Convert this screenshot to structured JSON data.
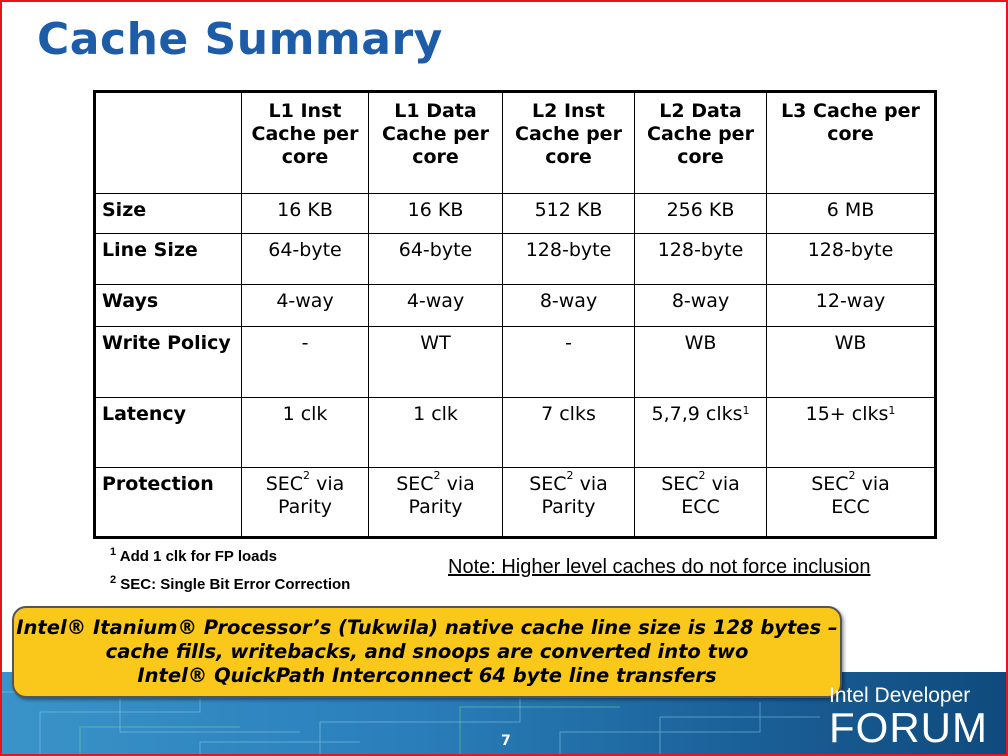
{
  "title": "Cache Summary",
  "table": {
    "headers": [
      "",
      "L1 Inst Cache per core",
      "L1 Data Cache per core",
      "L2 Inst Cache per core",
      "L2 Data Cache per core",
      "L3 Cache per core"
    ],
    "rows": [
      {
        "label": "Size",
        "cells": [
          "16 KB",
          "16 KB",
          "512 KB",
          "256 KB",
          "6 MB"
        ]
      },
      {
        "label": "Line Size",
        "cells": [
          "64-byte",
          "64-byte",
          "128-byte",
          "128-byte",
          "128-byte"
        ]
      },
      {
        "label": "Ways",
        "cells": [
          "4-way",
          "4-way",
          "8-way",
          "8-way",
          "12-way"
        ]
      },
      {
        "label": "Write Policy",
        "cells": [
          "-",
          "WT",
          "-",
          "WB",
          "WB"
        ]
      },
      {
        "label": "Latency",
        "cells": [
          "1 clk",
          "1 clk",
          "7 clks",
          "5,7,9 clks",
          "15+ clks"
        ],
        "sups": [
          "",
          "",
          "",
          "1",
          "1"
        ]
      },
      {
        "label": "Protection",
        "cells": [
          "SEC via Parity",
          "SEC via Parity",
          "SEC via Parity",
          "SEC via ECC",
          "SEC via ECC"
        ]
      }
    ]
  },
  "footnotes": [
    {
      "mark": "1",
      "text": "Add 1 clk for FP loads"
    },
    {
      "mark": "2",
      "text": "SEC: Single Bit Error Correction"
    }
  ],
  "note": "Note: Higher level caches do not force inclusion",
  "callout": {
    "line1": "Intel® Itanium® Processor’s (Tukwila) native cache line size is 128 bytes –",
    "line2": "cache fills, writebacks, and snoops are converted into two",
    "line3": "Intel® QuickPath Interconnect 64 byte line transfers"
  },
  "logo": {
    "line1": "Intel Developer",
    "line2": "FORUM"
  },
  "page_number": "7",
  "colors": {
    "title": "#1d5ca8",
    "callout": "#f9c81a",
    "frame": "#e8141b"
  }
}
